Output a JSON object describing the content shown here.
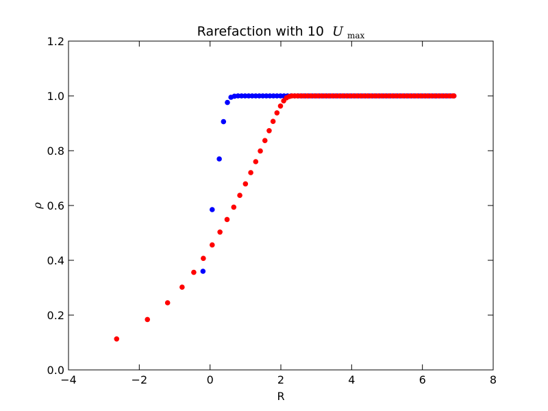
{
  "chart_data": {
    "type": "scatter",
    "title": "Rarefaction with 10",
    "title_math": "U",
    "title_math_sub": "max",
    "xlabel": "R",
    "ylabel": "ρ",
    "xlim": [
      -4,
      8
    ],
    "ylim": [
      0,
      1.2
    ],
    "xticks": [
      -4,
      -2,
      0,
      2,
      4,
      6,
      8
    ],
    "xtick_labels": [
      "−4",
      "−2",
      "0",
      "2",
      "4",
      "6",
      "8"
    ],
    "yticks": [
      0,
      0.2,
      0.4,
      0.6,
      0.8,
      1.0,
      1.2
    ],
    "ytick_labels": [
      "0.0",
      "0.2",
      "0.4",
      "0.6",
      "0.8",
      "1.0",
      "1.2"
    ],
    "grid": false,
    "series": [
      {
        "color": "#0000ff",
        "x": [
          -0.2,
          0.06,
          0.26,
          0.38,
          0.49,
          0.59,
          0.69,
          0.79,
          0.89,
          0.99,
          1.09,
          1.19,
          1.29,
          1.39,
          1.49,
          1.59,
          1.69,
          1.79,
          1.89,
          1.99,
          2.09,
          2.19,
          2.29,
          2.39,
          2.49,
          2.59,
          2.69,
          2.79,
          2.89,
          2.99,
          3.09,
          3.19,
          3.29,
          3.39,
          3.49,
          3.59,
          3.69,
          3.79,
          3.89,
          3.99,
          4.09,
          4.19,
          4.29,
          4.39,
          4.49,
          4.59,
          4.69,
          4.79,
          4.89,
          4.99,
          5.09,
          5.19,
          5.29,
          5.39,
          5.49,
          5.59,
          5.69,
          5.79,
          5.89,
          5.99,
          6.09,
          6.19,
          6.29,
          6.39,
          6.49,
          6.59,
          6.69,
          6.79,
          6.89
        ],
        "y": [
          0.36,
          0.585,
          0.77,
          0.906,
          0.976,
          0.995,
          0.999,
          1.0,
          1.0,
          1.0,
          1.0,
          1.0,
          1.0,
          1.0,
          1.0,
          1.0,
          1.0,
          1.0,
          1.0,
          1.0,
          1.0,
          1.0,
          1.0,
          1.0,
          1.0,
          1.0,
          1.0,
          1.0,
          1.0,
          1.0,
          1.0,
          1.0,
          1.0,
          1.0,
          1.0,
          1.0,
          1.0,
          1.0,
          1.0,
          1.0,
          1.0,
          1.0,
          1.0,
          1.0,
          1.0,
          1.0,
          1.0,
          1.0,
          1.0,
          1.0,
          1.0,
          1.0,
          1.0,
          1.0,
          1.0,
          1.0,
          1.0,
          1.0,
          1.0,
          1.0,
          1.0,
          1.0,
          1.0,
          1.0,
          1.0,
          1.0,
          1.0,
          1.0,
          1.0
        ]
      },
      {
        "color": "#ff0000",
        "x": [
          -2.64,
          -1.77,
          -1.2,
          -0.79,
          -0.46,
          -0.19,
          0.06,
          0.28,
          0.48,
          0.67,
          0.84,
          1.0,
          1.15,
          1.29,
          1.42,
          1.55,
          1.67,
          1.78,
          1.89,
          1.99,
          2.08,
          2.16,
          2.24,
          2.31,
          2.39,
          2.47,
          2.56,
          2.65,
          2.75,
          2.85,
          2.95,
          3.05,
          3.15,
          3.25,
          3.35,
          3.45,
          3.55,
          3.65,
          3.75,
          3.85,
          3.95,
          4.05,
          4.15,
          4.25,
          4.35,
          4.45,
          4.55,
          4.65,
          4.75,
          4.85,
          4.95,
          5.05,
          5.15,
          5.25,
          5.35,
          5.45,
          5.55,
          5.65,
          5.75,
          5.85,
          5.95,
          6.05,
          6.15,
          6.25,
          6.35,
          6.45,
          6.55,
          6.65,
          6.75,
          6.85,
          6.89
        ],
        "y": [
          0.113,
          0.184,
          0.245,
          0.302,
          0.356,
          0.407,
          0.456,
          0.503,
          0.549,
          0.594,
          0.637,
          0.679,
          0.72,
          0.76,
          0.799,
          0.837,
          0.873,
          0.907,
          0.938,
          0.963,
          0.982,
          0.993,
          0.998,
          1.0,
          1.0,
          1.0,
          1.0,
          1.0,
          1.0,
          1.0,
          1.0,
          1.0,
          1.0,
          1.0,
          1.0,
          1.0,
          1.0,
          1.0,
          1.0,
          1.0,
          1.0,
          1.0,
          1.0,
          1.0,
          1.0,
          1.0,
          1.0,
          1.0,
          1.0,
          1.0,
          1.0,
          1.0,
          1.0,
          1.0,
          1.0,
          1.0,
          1.0,
          1.0,
          1.0,
          1.0,
          1.0,
          1.0,
          1.0,
          1.0,
          1.0,
          1.0,
          1.0,
          1.0,
          1.0,
          1.0,
          1.0
        ]
      }
    ]
  }
}
